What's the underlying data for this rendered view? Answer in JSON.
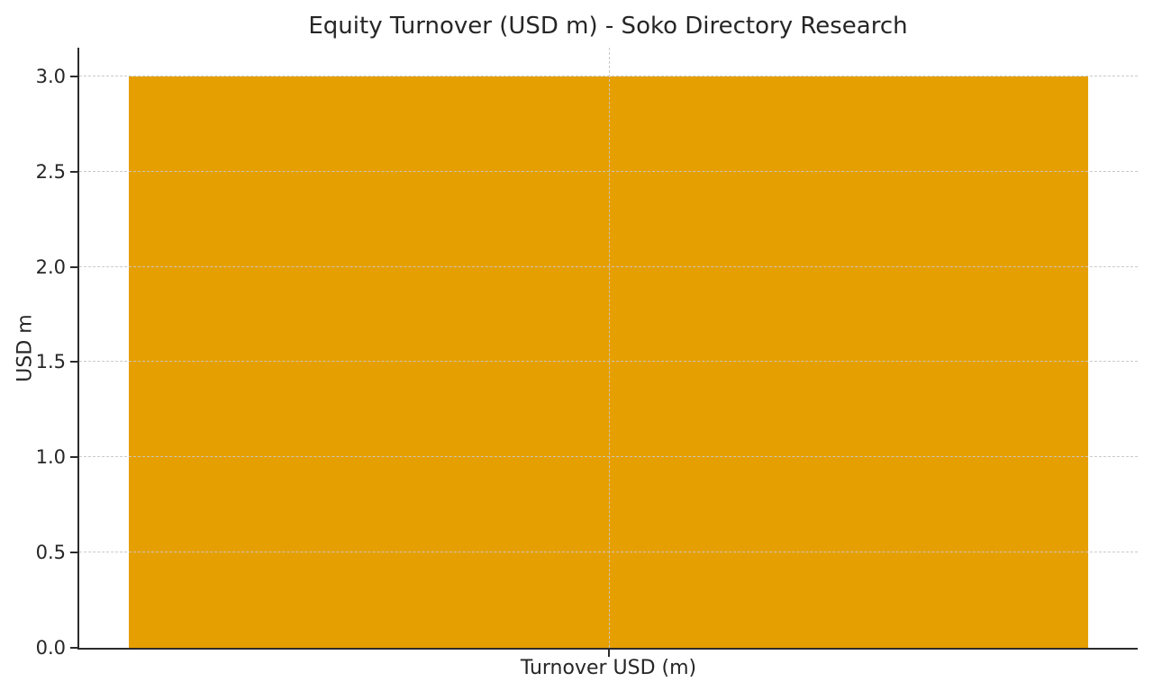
{
  "chart_data": {
    "type": "bar",
    "title": "Equity Turnover (USD m) - Soko Directory Research",
    "categories": [
      "Turnover USD (m)"
    ],
    "values": [
      3.0
    ],
    "xlabel": "",
    "ylabel": "USD m",
    "ylim": [
      0,
      3.15
    ],
    "yticks": [
      0.0,
      0.5,
      1.0,
      1.5,
      2.0,
      2.5,
      3.0
    ],
    "ytick_labels": [
      "0.0",
      "0.5",
      "1.0",
      "1.5",
      "2.0",
      "2.5",
      "3.0"
    ],
    "bar_color": "#E69F00",
    "grid": {
      "visible": true,
      "axis": "both",
      "line_style": "dashed",
      "color": "#c7c7c7",
      "drawn_above_bars": true
    },
    "legend": {
      "visible": false
    },
    "background_color": "#ffffff",
    "text_color": "#262626"
  }
}
